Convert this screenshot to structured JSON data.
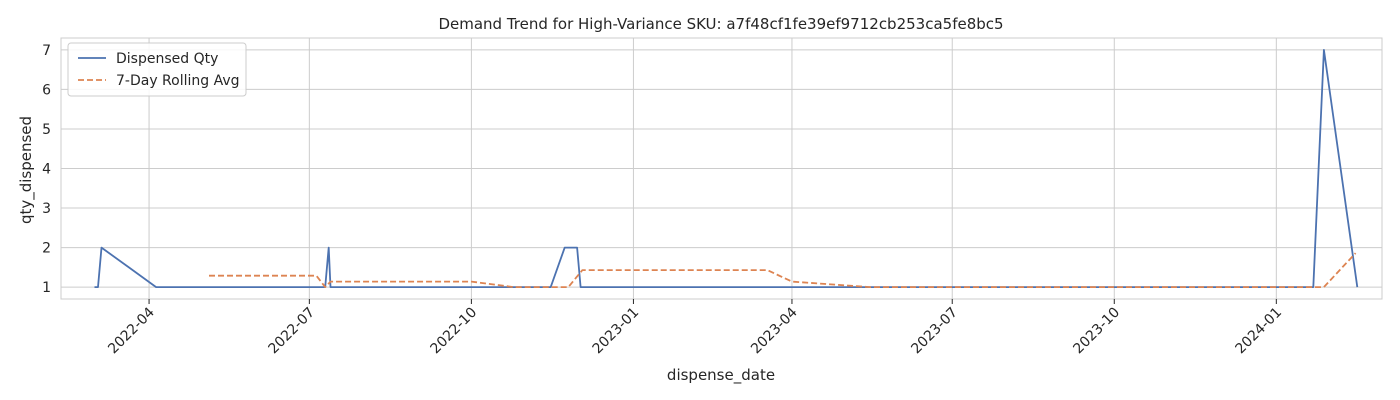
{
  "chart_data": {
    "type": "line",
    "title": "Demand Trend for High-Variance SKU: a7f48cf1fe39ef9712cb253ca5fe8bc5",
    "xlabel": "dispense_date",
    "ylabel": "qty_dispensed",
    "ylim": [
      0.7,
      7.3
    ],
    "xlim": [
      "2022-02-10",
      "2024-03-01"
    ],
    "grid": true,
    "legend_position": "top-left",
    "x_ticks": [
      "2022-04-01",
      "2022-07-01",
      "2022-10-01",
      "2023-01-01",
      "2023-04-01",
      "2023-07-01",
      "2023-10-01",
      "2024-01-01"
    ],
    "x_tick_labels": [
      "2022-04",
      "2022-07",
      "2022-10",
      "2023-01",
      "2023-04",
      "2023-07",
      "2023-10",
      "2024-01"
    ],
    "y_ticks": [
      1,
      2,
      3,
      4,
      5,
      6,
      7
    ],
    "y_tick_labels": [
      "1",
      "2",
      "3",
      "4",
      "5",
      "6",
      "7"
    ],
    "series": [
      {
        "name": "Dispensed Qty",
        "color": "#4c72b0",
        "style": "solid",
        "x": [
          "2022-03-01",
          "2022-03-03",
          "2022-03-05",
          "2022-04-05",
          "2022-07-10",
          "2022-07-12",
          "2022-07-13",
          "2022-11-15",
          "2022-11-23",
          "2022-11-30",
          "2022-12-02",
          "2024-01-22",
          "2024-01-28",
          "2024-02-16"
        ],
        "values": [
          1,
          1,
          2,
          1,
          1,
          2,
          1,
          1,
          2,
          2,
          1,
          1,
          7,
          1
        ]
      },
      {
        "name": "7-Day Rolling Avg",
        "color": "#dd8452",
        "style": "dashed",
        "x": [
          "2022-05-05",
          "2022-07-05",
          "2022-07-10",
          "2022-07-13",
          "2022-10-01",
          "2022-10-25",
          "2022-11-25",
          "2022-12-03",
          "2023-03-18",
          "2023-04-01",
          "2023-05-15",
          "2024-01-28",
          "2024-02-15"
        ],
        "values": [
          1.29,
          1.29,
          1.0,
          1.14,
          1.14,
          1.0,
          1.0,
          1.43,
          1.43,
          1.14,
          1.0,
          1.0,
          1.86
        ]
      }
    ]
  }
}
